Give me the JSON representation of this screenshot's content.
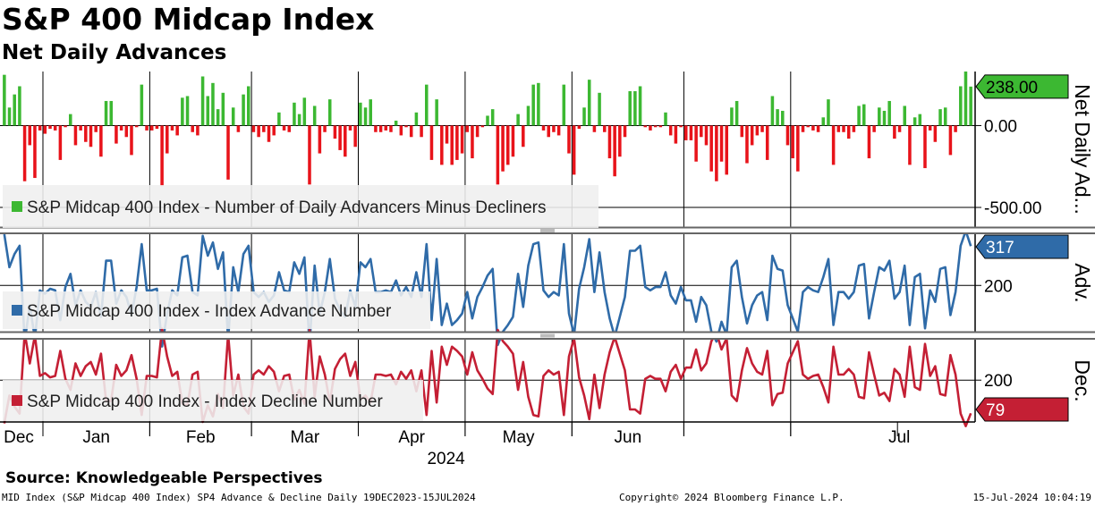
{
  "header": {
    "title": "S&P 400 Midcap Index",
    "subtitle": "Net Daily Advances"
  },
  "footer": {
    "source": "Source: Knowledgeable Perspectives",
    "left": "MID Index (S&P Midcap 400 Index) SP4 Advance & Decline  Daily 19DEC2023-15JUL2024",
    "center": "Copyright© 2024 Bloomberg Finance L.P.",
    "right": "15-Jul-2024 10:04:19"
  },
  "colors": {
    "positive": "#3cb832",
    "negative": "#e8131a",
    "advance": "#2f6ba8",
    "decline": "#c41f34",
    "legend_bg": "#efefef"
  },
  "chart_data": [
    {
      "type": "bar",
      "panel": "net",
      "series_name": "S&P Midcap 400 Index - Number of Daily Advancers Minus Decliners",
      "axis_title": "Net Daily Ad...",
      "last_value_label": "238.00",
      "ticks": [
        {
          "value": 0,
          "label": "0.00"
        },
        {
          "value": -500,
          "label": "-500.00"
        }
      ],
      "ylim": [
        -620,
        330
      ],
      "values": [
        310,
        110,
        190,
        240,
        -340,
        -120,
        -320,
        -30,
        -50,
        -20,
        -30,
        -210,
        -10,
        70,
        -120,
        -30,
        -100,
        -130,
        -40,
        -190,
        150,
        150,
        -110,
        -30,
        -70,
        -180,
        -10,
        250,
        -30,
        -30,
        -20,
        -370,
        -170,
        -30,
        -60,
        170,
        180,
        -40,
        -60,
        300,
        180,
        260,
        100,
        200,
        -330,
        110,
        -40,
        190,
        240,
        -40,
        -70,
        -40,
        -100,
        -60,
        80,
        -30,
        -40,
        140,
        70,
        170,
        -360,
        120,
        -170,
        -40,
        160,
        -80,
        -150,
        -190,
        -30,
        -130,
        140,
        110,
        160,
        -40,
        -40,
        -30,
        -40,
        30,
        -60,
        -10,
        -70,
        80,
        -70,
        250,
        -210,
        160,
        -240,
        -110,
        -240,
        -210,
        -170,
        -40,
        -200,
        -70,
        -10,
        60,
        100,
        -360,
        -280,
        -240,
        -190,
        70,
        -130,
        120,
        250,
        260,
        -30,
        -70,
        -40,
        -60,
        250,
        -170,
        -300,
        -20,
        110,
        280,
        -40,
        200,
        -40,
        -200,
        -310,
        -190,
        -70,
        210,
        210,
        240,
        -10,
        -30,
        -10,
        -10,
        80,
        -60,
        -110,
        -10,
        -90,
        -90,
        -220,
        -70,
        -120,
        -280,
        -340,
        -220,
        -300,
        110,
        150,
        -70,
        -230,
        -120,
        -60,
        -40,
        -210,
        180,
        100,
        90,
        -120,
        -200,
        -280,
        -40,
        -10,
        -30,
        -40,
        50,
        160,
        -240,
        -40,
        -40,
        -80,
        -40,
        120,
        130,
        -200,
        -40,
        110,
        90,
        150,
        -80,
        -40,
        120,
        -240,
        50,
        70,
        -260,
        -30,
        -100,
        100,
        110,
        -180,
        -40,
        240,
        330,
        238
      ]
    },
    {
      "type": "line",
      "panel": "advance",
      "series_name": "S&P Midcap 400 Index - Index Advance Number",
      "axis_title": "Adv.",
      "last_value_label": "317",
      "ticks": [
        {
          "value": 200,
          "label": "200"
        }
      ],
      "ylim": [
        60,
        355
      ]
    },
    {
      "type": "line",
      "panel": "decline",
      "series_name": "S&P Midcap 400 Index - Index Decline Number",
      "axis_title": "Dec.",
      "last_value_label": "79",
      "ticks": [
        {
          "value": 200,
          "label": "200"
        }
      ],
      "ylim": [
        50,
        345
      ]
    }
  ],
  "x_axis": {
    "months": [
      "Dec",
      "Jan",
      "Feb",
      "Mar",
      "Apr",
      "May",
      "Jun",
      "Jul"
    ],
    "year": "2024"
  }
}
